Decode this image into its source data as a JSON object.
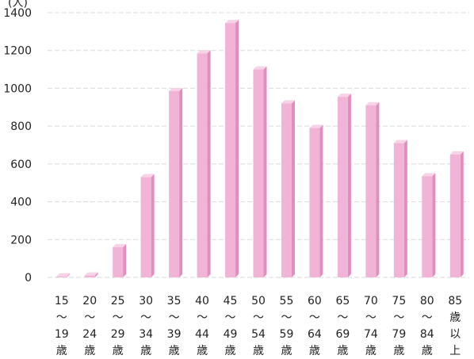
{
  "chart_data": {
    "type": "bar",
    "title": "",
    "y_unit_label": "(人)",
    "ylim": [
      0,
      1400
    ],
    "yticks": [
      0,
      200,
      400,
      600,
      800,
      1000,
      1200,
      1400
    ],
    "grid": true,
    "categories": [
      [
        "15",
        "～",
        "19",
        "歳"
      ],
      [
        "20",
        "～",
        "24",
        "歳"
      ],
      [
        "25",
        "～",
        "29",
        "歳"
      ],
      [
        "30",
        "～",
        "34",
        "歳"
      ],
      [
        "35",
        "～",
        "39",
        "歳"
      ],
      [
        "40",
        "～",
        "44",
        "歳"
      ],
      [
        "45",
        "～",
        "49",
        "歳"
      ],
      [
        "50",
        "～",
        "54",
        "歳"
      ],
      [
        "55",
        "～",
        "59",
        "歳"
      ],
      [
        "60",
        "～",
        "64",
        "歳"
      ],
      [
        "65",
        "～",
        "69",
        "歳"
      ],
      [
        "70",
        "～",
        "74",
        "歳"
      ],
      [
        "75",
        "～",
        "79",
        "歳"
      ],
      [
        "80",
        "～",
        "84",
        "歳"
      ],
      [
        "85",
        "歳",
        "以",
        "上"
      ]
    ],
    "values": [
      5,
      10,
      160,
      530,
      985,
      1185,
      1345,
      1100,
      920,
      790,
      955,
      910,
      710,
      535,
      650
    ],
    "colors": {
      "bar_front": "#f2b4d6",
      "bar_side": "#de8fbe",
      "bar_top": "#f8d3e8",
      "grid": "#d9d9d9"
    }
  }
}
